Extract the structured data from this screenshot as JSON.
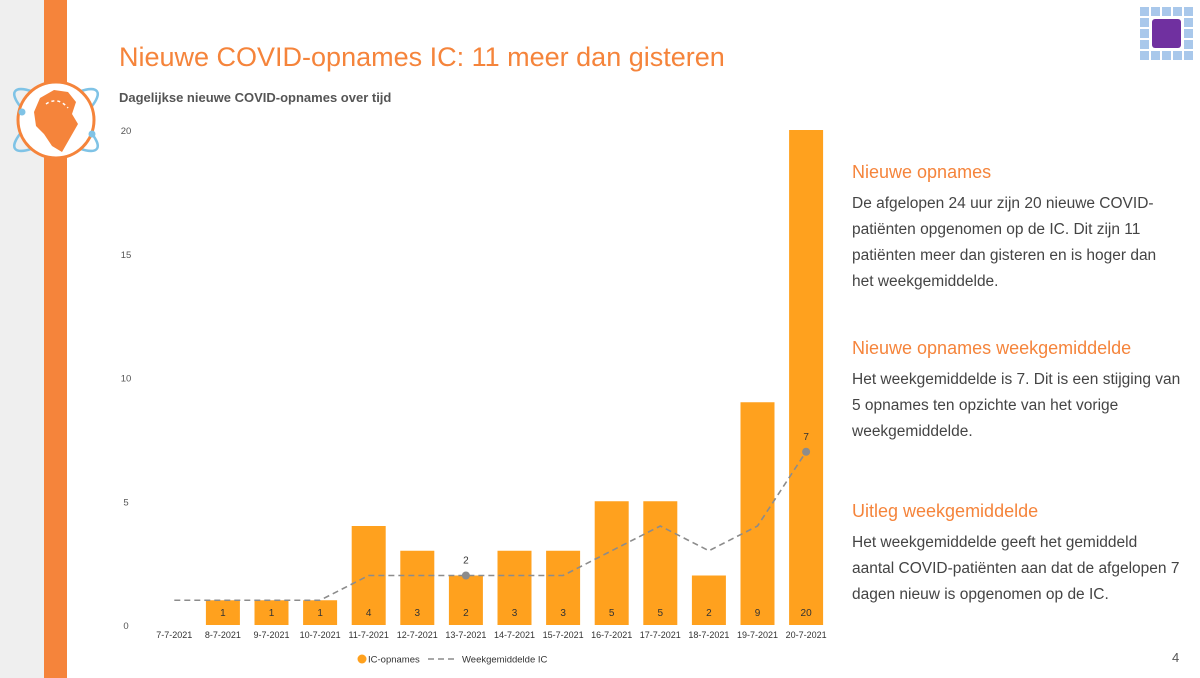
{
  "header": {
    "title": "Nieuwe COVID-opnames IC: 11 meer dan gisteren",
    "subtitle": "Dagelijkse nieuwe COVID-opnames over tijd"
  },
  "page_number": "4",
  "colors": {
    "accent": "#f5843b",
    "bar": "#ffa11e",
    "line": "#8c8c8c",
    "brand_purple": "#7030a0",
    "brand_blue": "#a9c8eb"
  },
  "icons": {
    "logo": "netherlands-map-icon",
    "brand": "square-grid-logo"
  },
  "chart_data": {
    "type": "bar",
    "categories": [
      "7-7-2021",
      "8-7-2021",
      "9-7-2021",
      "10-7-2021",
      "11-7-2021",
      "12-7-2021",
      "13-7-2021",
      "14-7-2021",
      "15-7-2021",
      "16-7-2021",
      "17-7-2021",
      "18-7-2021",
      "19-7-2021",
      "20-7-2021"
    ],
    "series": [
      {
        "name": "IC-opnames",
        "type": "bar",
        "values": [
          null,
          1,
          1,
          1,
          4,
          3,
          2,
          3,
          3,
          5,
          5,
          2,
          9,
          20
        ],
        "data_labels": [
          "",
          "1",
          "1",
          "1",
          "4",
          "3",
          "2",
          "3",
          "3",
          "5",
          "5",
          "2",
          "9",
          "20"
        ]
      },
      {
        "name": "Weekgemiddelde IC",
        "type": "line",
        "style": "dashed",
        "values": [
          1,
          1,
          1,
          1,
          2,
          2,
          2,
          2,
          2,
          3,
          4,
          3,
          4,
          7
        ],
        "data_labels": [
          "",
          "",
          "",
          "",
          "",
          "",
          "2",
          "",
          "",
          "",
          "",
          "",
          "",
          "7"
        ]
      }
    ],
    "yticks": [
      "0",
      "5",
      "10",
      "15",
      "20"
    ],
    "ylim": [
      0,
      20
    ],
    "grid": false,
    "legend": "bottom-center"
  },
  "panels": [
    {
      "heading": "Nieuwe opnames",
      "body": "De afgelopen 24 uur zijn 20 nieuwe COVID-patiënten opgenomen op de IC. Dit zijn 11 patiënten meer dan gisteren en is hoger dan het weekgemiddelde."
    },
    {
      "heading": "Nieuwe opnames weekgemiddelde",
      "body": "Het weekgemiddelde is 7. Dit is een stijging van 5 opnames ten opzichte van het vorige weekgemiddelde."
    },
    {
      "heading": "Uitleg weekgemiddelde",
      "body": "Het weekgemiddelde geeft het gemiddeld aantal COVID-patiënten aan dat de afgelopen 7 dagen nieuw is opgenomen op de IC."
    }
  ]
}
